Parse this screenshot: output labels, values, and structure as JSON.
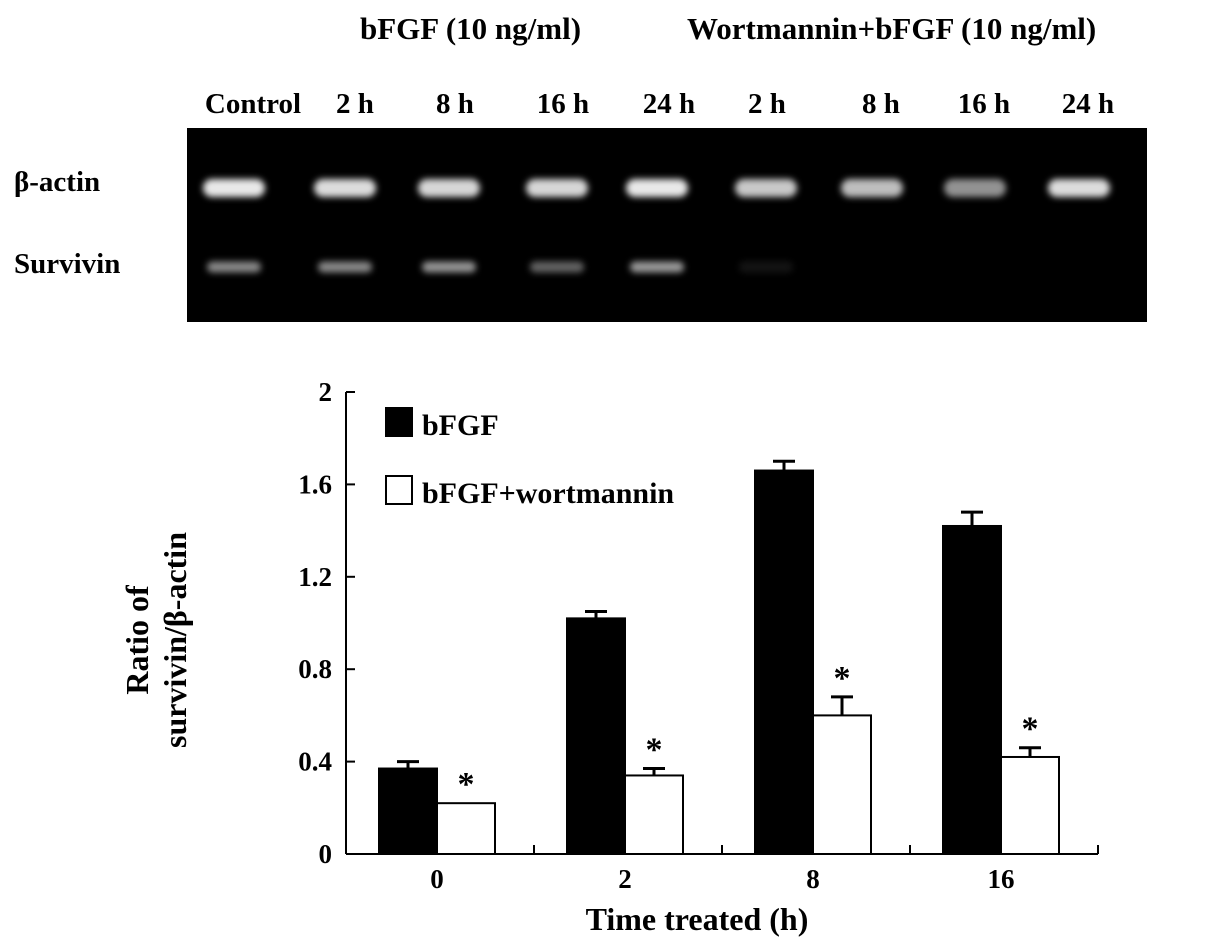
{
  "gel": {
    "group_labels": [
      "bFGF (10 ng/ml)",
      "Wortmannin+bFGF (10 ng/ml)"
    ],
    "lanes": [
      "Control",
      "2 h",
      "8 h",
      "16 h",
      "24 h",
      "2 h",
      "8 h",
      "16 h",
      "24 h"
    ],
    "row_labels": [
      "β-actin",
      "Survivin"
    ],
    "band_intensity": {
      "beta_actin": [
        0.95,
        0.9,
        0.88,
        0.88,
        0.95,
        0.82,
        0.78,
        0.6,
        0.9
      ],
      "survivin": [
        0.55,
        0.55,
        0.6,
        0.4,
        0.62,
        0.08,
        0,
        0,
        0
      ]
    },
    "colors": {
      "background": "#000000",
      "band": "#f4f4f4"
    }
  },
  "chart_data": {
    "type": "bar",
    "categories": [
      "0",
      "2",
      "8",
      "16"
    ],
    "series": [
      {
        "name": "bFGF",
        "values": [
          0.37,
          1.02,
          1.66,
          1.42
        ],
        "errors": [
          0.03,
          0.03,
          0.04,
          0.06
        ],
        "color": "#000000"
      },
      {
        "name": "bFGF+wortmannin",
        "values": [
          0.22,
          0.34,
          0.6,
          0.42
        ],
        "errors": [
          0,
          0.03,
          0.08,
          0.04
        ],
        "color": "#ffffff"
      }
    ],
    "annotations": [
      {
        "category": "0",
        "series": "bFGF+wortmannin",
        "text": "*"
      },
      {
        "category": "2",
        "series": "bFGF+wortmannin",
        "text": "*"
      },
      {
        "category": "8",
        "series": "bFGF+wortmannin",
        "text": "*"
      },
      {
        "category": "16",
        "series": "bFGF+wortmannin",
        "text": "*"
      }
    ],
    "xlabel": "Time treated (h)",
    "ylabel_lines": [
      "Ratio of",
      "survivin/β-actin"
    ],
    "ylim": [
      0,
      2
    ],
    "yticks": [
      0,
      0.4,
      0.8,
      1.2,
      1.6,
      2
    ],
    "ytick_labels": [
      "0",
      "0.4",
      "0.8",
      "1.2",
      "1.6",
      "2"
    ],
    "grid": false,
    "legend_position": "top-left"
  }
}
